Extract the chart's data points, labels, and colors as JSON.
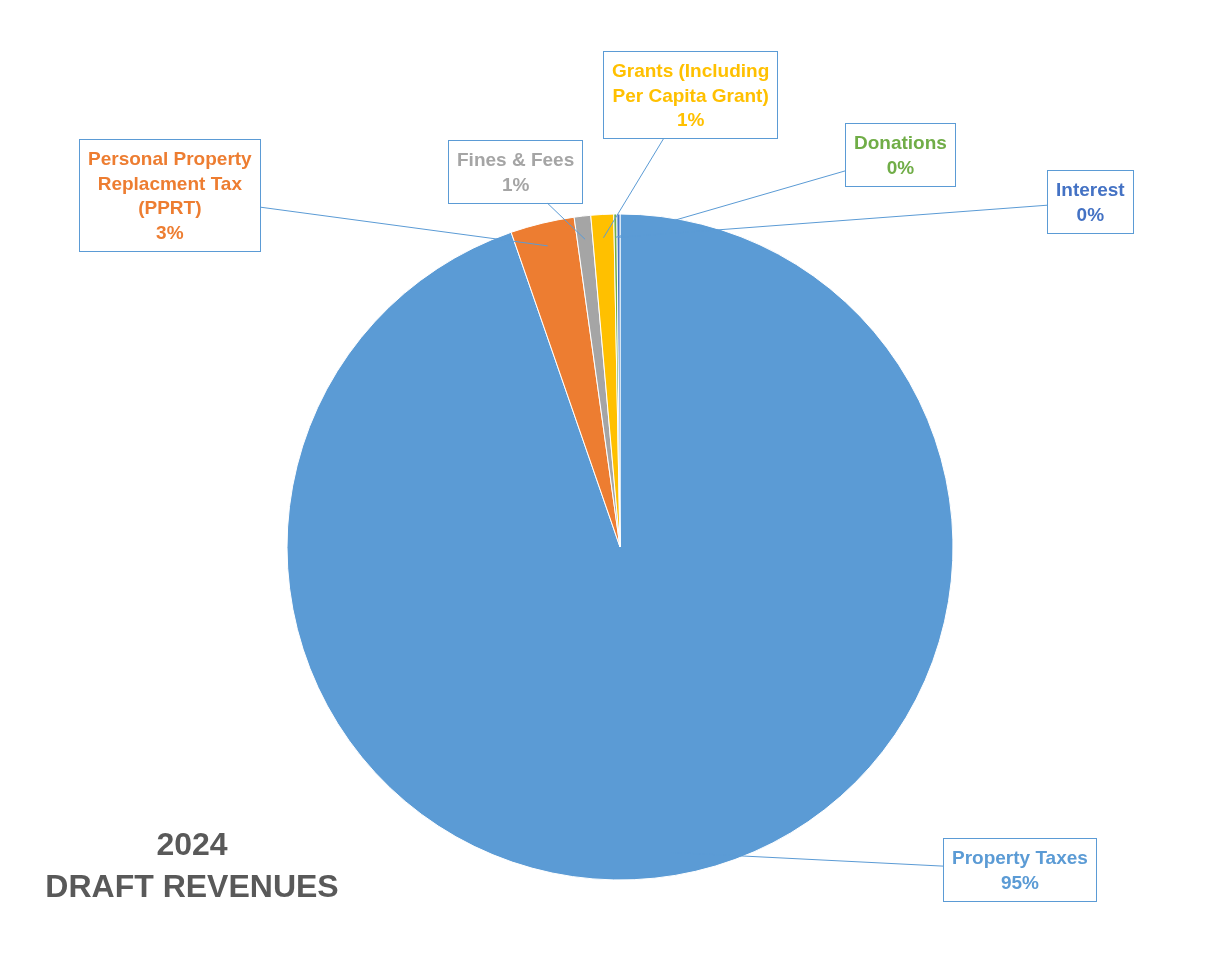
{
  "chart_data": {
    "type": "pie",
    "title": "2024\nDRAFT REVENUES",
    "categories": [
      "Property Taxes",
      "Personal Property Replacment Tax (PPRT)",
      "Fines & Fees",
      "Grants (Including Per Capita Grant)",
      "Donations",
      "Interest"
    ],
    "values": [
      94.7,
      3.1,
      0.8,
      1.1,
      0.15,
      0.15
    ],
    "value_labels": [
      "95%",
      "3%",
      "1%",
      "1%",
      "0%",
      "0%"
    ],
    "colors": [
      "#5b9bd5",
      "#ed7d31",
      "#a5a5a5",
      "#ffc000",
      "#70ad47",
      "#4472c4"
    ],
    "legend": false
  }
}
